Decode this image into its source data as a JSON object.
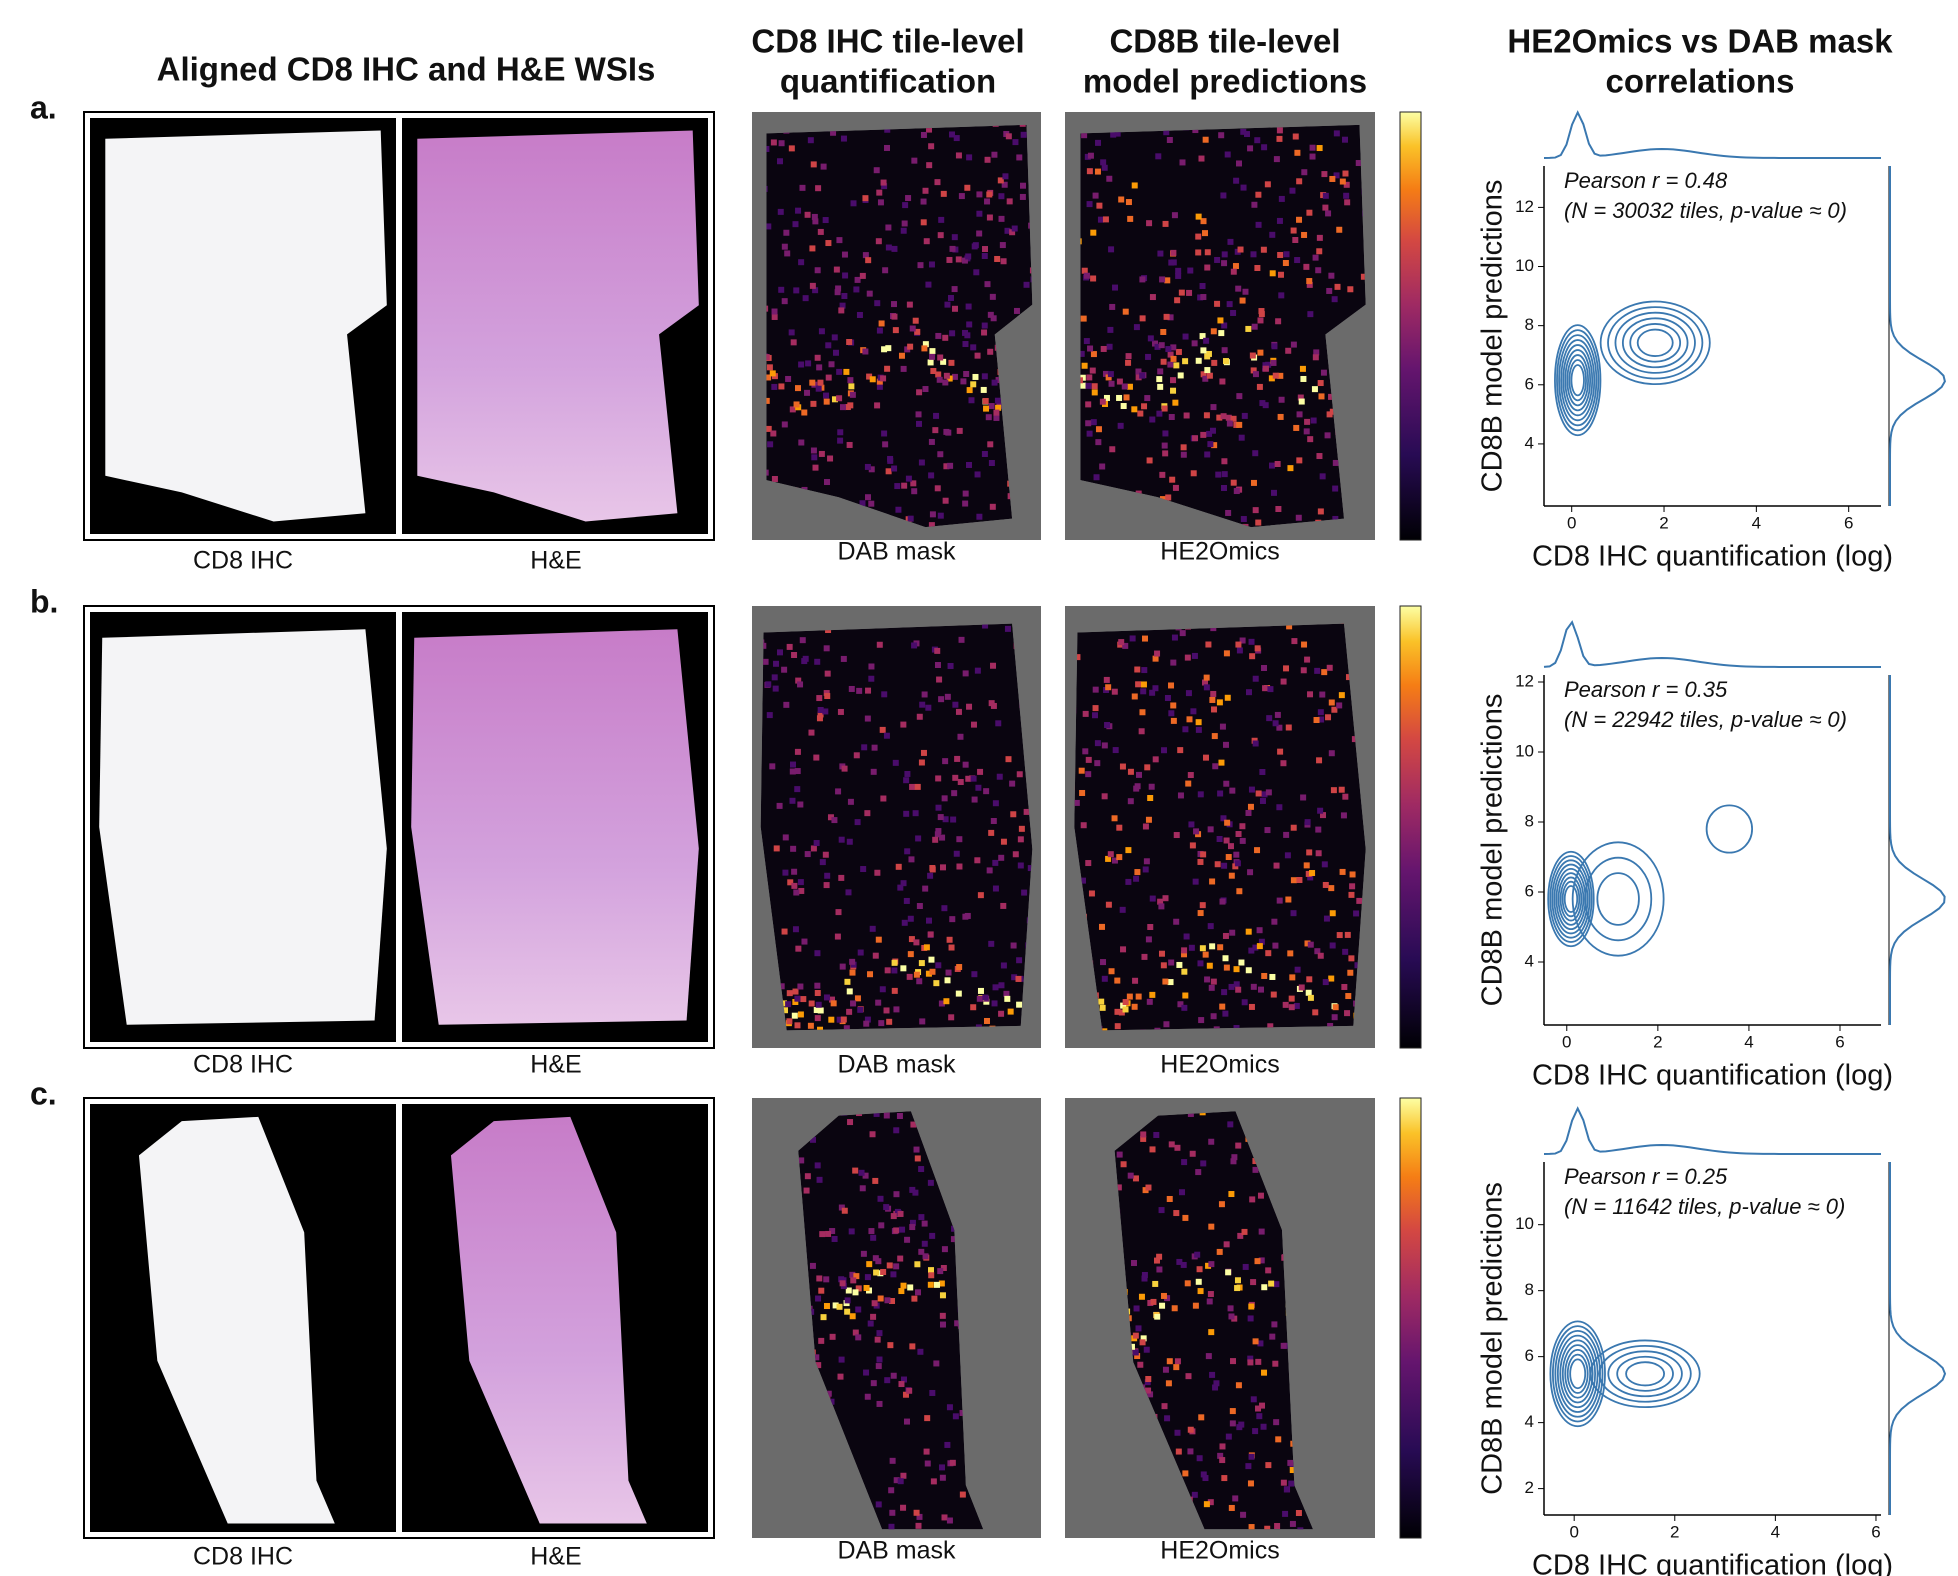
{
  "headers": [
    [
      "Aligned CD8 IHC and H&E WSIs"
    ],
    [
      "CD8 IHC tile-level",
      "quantification"
    ],
    [
      "CD8B tile-level",
      "model predictions"
    ],
    [
      "HE2Omics vs DAB mask",
      "correlations"
    ]
  ],
  "rows": [
    {
      "label": "a.",
      "captions": [
        "CD8 IHC",
        "H&E",
        "DAB mask",
        "HE2Omics"
      ],
      "plot": {
        "annotation": [
          "Pearson r = 0.48",
          "(N = 30032 tiles, p-value ≈ 0)"
        ],
        "xlabel": "CD8 IHC quantification (log)",
        "ylabel": "CD8B model predictions",
        "xlim": [
          -0.6,
          6.7
        ],
        "ylim": [
          1.9,
          13.4
        ],
        "xticks": [
          0,
          2,
          4,
          6
        ],
        "yticks": [
          4,
          6,
          8,
          10,
          12
        ]
      }
    },
    {
      "label": "b.",
      "captions": [
        "CD8 IHC",
        "H&E",
        "DAB mask",
        "HE2Omics"
      ],
      "plot": {
        "annotation": [
          "Pearson r = 0.35",
          "(N = 22942 tiles, p-value ≈ 0)"
        ],
        "xlabel": "CD8 IHC quantification (log)",
        "ylabel": "CD8B model predictions",
        "xlim": [
          -0.5,
          6.9
        ],
        "ylim": [
          2.2,
          12.2
        ],
        "xticks": [
          0,
          2,
          4,
          6
        ],
        "yticks": [
          4,
          6,
          8,
          10,
          12
        ]
      }
    },
    {
      "label": "c.",
      "captions": [
        "CD8 IHC",
        "H&E",
        "DAB mask",
        "HE2Omics"
      ],
      "plot": {
        "annotation": [
          "Pearson r = 0.25",
          "(N = 11642 tiles, p-value ≈ 0)"
        ],
        "xlabel": "CD8 IHC quantification (log)",
        "ylabel": "CD8B model predictions",
        "xlim": [
          -0.6,
          6.1
        ],
        "ylim": [
          1.2,
          11.9
        ],
        "xticks": [
          0,
          2,
          4,
          6
        ],
        "yticks": [
          2,
          4,
          6,
          8,
          10
        ]
      }
    }
  ]
}
